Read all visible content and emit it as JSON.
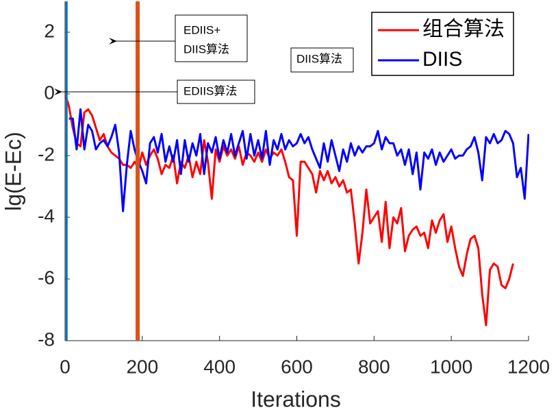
{
  "chart_data": {
    "type": "line",
    "xlabel": "Iterations",
    "ylabel": "lg(E-Ec)",
    "xlim": [
      0,
      1200
    ],
    "xticks": [
      0,
      200,
      400,
      600,
      800,
      1000,
      1200
    ],
    "ylim": [
      -8,
      3
    ],
    "yticks": [
      -8,
      -6,
      -4,
      -2,
      0,
      2
    ],
    "grid": false,
    "legend": "upper right",
    "vlines": [
      {
        "x": 4,
        "color": "#0072bd"
      },
      {
        "x": 188,
        "color": "#d95319"
      }
    ],
    "annotations": [
      [
        "EDIIS+",
        "DIIS算法"
      ],
      [
        "EDIIS算法"
      ],
      [
        "DIIS算法"
      ]
    ],
    "series": [
      {
        "name": "组合算法",
        "color": "#ff0000",
        "x": [
          0,
          10,
          20,
          30,
          40,
          50,
          60,
          70,
          80,
          90,
          100,
          110,
          120,
          130,
          140,
          150,
          160,
          170,
          180,
          190,
          200,
          210,
          220,
          230,
          240,
          250,
          260,
          270,
          280,
          290,
          300,
          310,
          320,
          330,
          340,
          350,
          360,
          370,
          380,
          390,
          400,
          410,
          420,
          430,
          440,
          450,
          460,
          470,
          480,
          490,
          500,
          510,
          520,
          530,
          540,
          550,
          560,
          570,
          580,
          590,
          600,
          610,
          620,
          630,
          640,
          650,
          660,
          670,
          680,
          690,
          700,
          710,
          720,
          730,
          740,
          750,
          760,
          770,
          780,
          790,
          800,
          810,
          820,
          830,
          840,
          850,
          860,
          870,
          880,
          890,
          900,
          910,
          920,
          930,
          940,
          950,
          960,
          970,
          980,
          990,
          1000,
          1010,
          1020,
          1030,
          1040,
          1050,
          1060,
          1070,
          1080,
          1090,
          1100,
          1110,
          1120,
          1130,
          1140,
          1150,
          1160
        ],
        "values": [
          0,
          -0.4,
          -1.1,
          -1.6,
          -1.7,
          -0.6,
          -0.5,
          -0.7,
          -1.1,
          -1.5,
          -1.3,
          -1.7,
          -1.9,
          -2.0,
          -2.1,
          -2.3,
          -2.3,
          -2.4,
          -2.2,
          -2.4,
          -1.9,
          -2.3,
          -2.0,
          -1.8,
          -2.1,
          -2.6,
          -2.3,
          -2.4,
          -2.0,
          -2.9,
          -2.2,
          -2.4,
          -2.0,
          -2.7,
          -2.2,
          -2.6,
          -1.5,
          -2.2,
          -3.4,
          -1.8,
          -2.2,
          -1.7,
          -2.0,
          -1.8,
          -2.1,
          -1.7,
          -2.3,
          -1.9,
          -2.0,
          -2.2,
          -1.9,
          -2.2,
          -1.8,
          -2.1,
          -1.9,
          -2.0,
          -1.8,
          -2.2,
          -2.7,
          -2.8,
          -4.6,
          -2.2,
          -2.2,
          -2.4,
          -2.6,
          -3.2,
          -2.5,
          -2.8,
          -2.5,
          -2.9,
          -2.7,
          -3.0,
          -2.8,
          -3.2,
          -3.1,
          -4.2,
          -5.5,
          -4.5,
          -3.1,
          -4.2,
          -4.0,
          -3.8,
          -4.8,
          -3.5,
          -5.0,
          -4.0,
          -4.2,
          -3.7,
          -5.1,
          -4.6,
          -4.4,
          -4.3,
          -4.6,
          -4.5,
          -5.0,
          -4.1,
          -4.5,
          -4.1,
          -3.9,
          -4.8,
          -4.3,
          -5.0,
          -5.6,
          -5.9,
          -5.2,
          -4.7,
          -4.6,
          -5.0,
          -6.5,
          -7.5,
          -5.7,
          -5.5,
          -5.6,
          -6.2,
          -6.3,
          -6.0,
          -5.5
        ]
      },
      {
        "name": "DIIS",
        "color": "#0000ff",
        "x": [
          10,
          20,
          30,
          40,
          50,
          60,
          70,
          80,
          90,
          100,
          110,
          120,
          130,
          140,
          150,
          160,
          170,
          180,
          190,
          200,
          210,
          220,
          230,
          240,
          250,
          260,
          270,
          280,
          290,
          300,
          310,
          320,
          330,
          340,
          350,
          360,
          370,
          380,
          390,
          400,
          410,
          420,
          430,
          440,
          450,
          460,
          470,
          480,
          490,
          500,
          510,
          520,
          530,
          540,
          550,
          560,
          570,
          580,
          590,
          600,
          610,
          620,
          630,
          640,
          650,
          660,
          670,
          680,
          690,
          700,
          710,
          720,
          730,
          740,
          750,
          760,
          770,
          780,
          790,
          800,
          810,
          820,
          830,
          840,
          850,
          860,
          870,
          880,
          890,
          900,
          910,
          920,
          930,
          940,
          950,
          960,
          970,
          980,
          990,
          1000,
          1010,
          1020,
          1030,
          1040,
          1050,
          1060,
          1070,
          1080,
          1090,
          1100,
          1110,
          1120,
          1130,
          1140,
          1150,
          1160,
          1170,
          1180,
          1190,
          1200
        ],
        "values": [
          -0.8,
          -0.8,
          -1.8,
          -0.5,
          -1.8,
          -1.0,
          -1.2,
          -1.8,
          -1.6,
          -1.5,
          -1.7,
          -1.4,
          -1.0,
          -1.9,
          -3.8,
          -2.3,
          -1.2,
          -1.8,
          -2.2,
          -2.5,
          -2.9,
          -1.6,
          -1.4,
          -1.9,
          -1.3,
          -2.2,
          -1.7,
          -2.2,
          -1.5,
          -2.6,
          -1.5,
          -2.2,
          -1.6,
          -2.0,
          -1.3,
          -2.6,
          -1.6,
          -1.9,
          -1.4,
          -2.1,
          -1.5,
          -1.9,
          -1.3,
          -2.0,
          -1.6,
          -1.2,
          -2.1,
          -1.3,
          -2.0,
          -1.5,
          -2.1,
          -1.2,
          -2.3,
          -1.5,
          -1.8,
          -1.3,
          -1.8,
          -1.5,
          -1.7,
          -1.6,
          -1.3,
          -1.6,
          -1.4,
          -1.8,
          -2.1,
          -2.4,
          -1.6,
          -2.2,
          -1.5,
          -2.0,
          -2.5,
          -1.8,
          -2.2,
          -1.6,
          -2.0,
          -1.7,
          -1.9,
          -1.7,
          -1.7,
          -1.6,
          -1.2,
          -1.8,
          -1.4,
          -1.6,
          -1.6,
          -2.0,
          -1.8,
          -2.3,
          -1.8,
          -2.6,
          -1.9,
          -3.1,
          -1.9,
          -2.1,
          -1.8,
          -2.3,
          -1.9,
          -2.2,
          -2.0,
          -1.8,
          -2.1,
          -2.0,
          -2.0,
          -1.8,
          -1.7,
          -1.4,
          -1.9,
          -2.8,
          -1.4,
          -1.6,
          -1.3,
          -1.6,
          -1.5,
          -1.2,
          -1.3,
          -1.6,
          -2.7,
          -2.4,
          -3.4,
          -1.3
        ]
      }
    ]
  }
}
